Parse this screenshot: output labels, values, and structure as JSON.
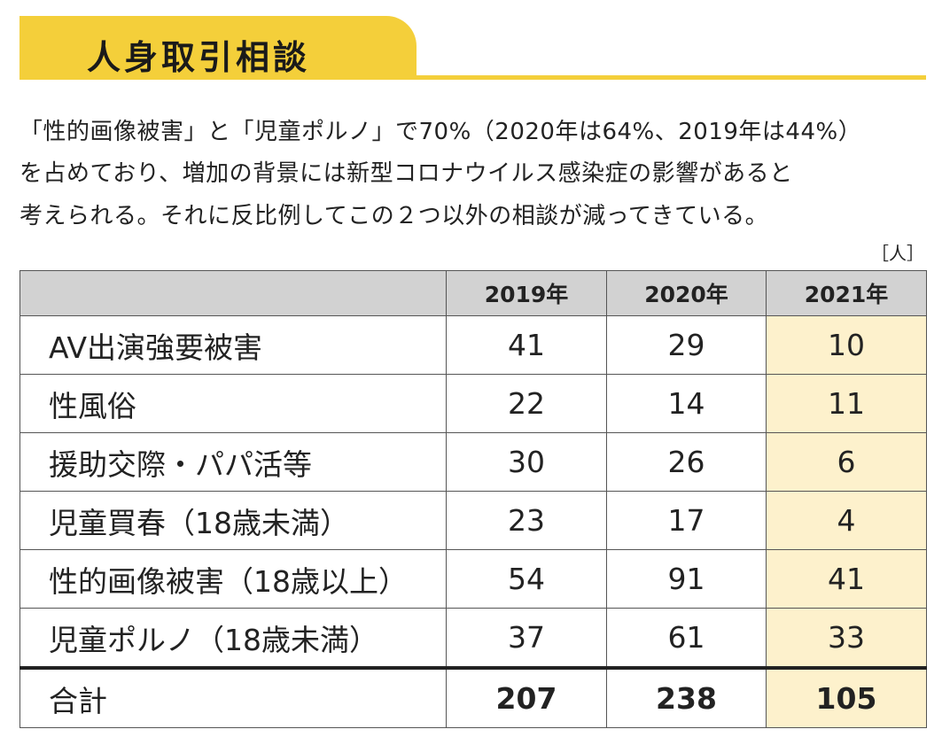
{
  "header": {
    "title": "人身取引相談"
  },
  "description": [
    "「性的画像被害」と「児童ポルノ」で70%（2020年は64%、2019年は44%）",
    "を占めており、増加の背景には新型コロナウイルス感染症の影響があると",
    "考えられる。それに反比例してこの２つ以外の相談が減ってきている。"
  ],
  "unit": "［人］",
  "table": {
    "columns": [
      "2019年",
      "2020年",
      "2021年"
    ],
    "rows": [
      {
        "label": "AV出演強要被害",
        "values": [
          41,
          29,
          10
        ]
      },
      {
        "label": "性風俗",
        "values": [
          22,
          14,
          11
        ]
      },
      {
        "label": "援助交際・パパ活等",
        "values": [
          30,
          26,
          6
        ]
      },
      {
        "label": "児童買春（18歳未満）",
        "values": [
          23,
          17,
          4
        ]
      },
      {
        "label": "性的画像被害（18歳以上）",
        "values": [
          54,
          91,
          41
        ]
      },
      {
        "label": "児童ポルノ（18歳未満）",
        "values": [
          37,
          61,
          33
        ]
      }
    ],
    "total": {
      "label": "合計",
      "values": [
        207,
        238,
        105
      ]
    }
  }
}
